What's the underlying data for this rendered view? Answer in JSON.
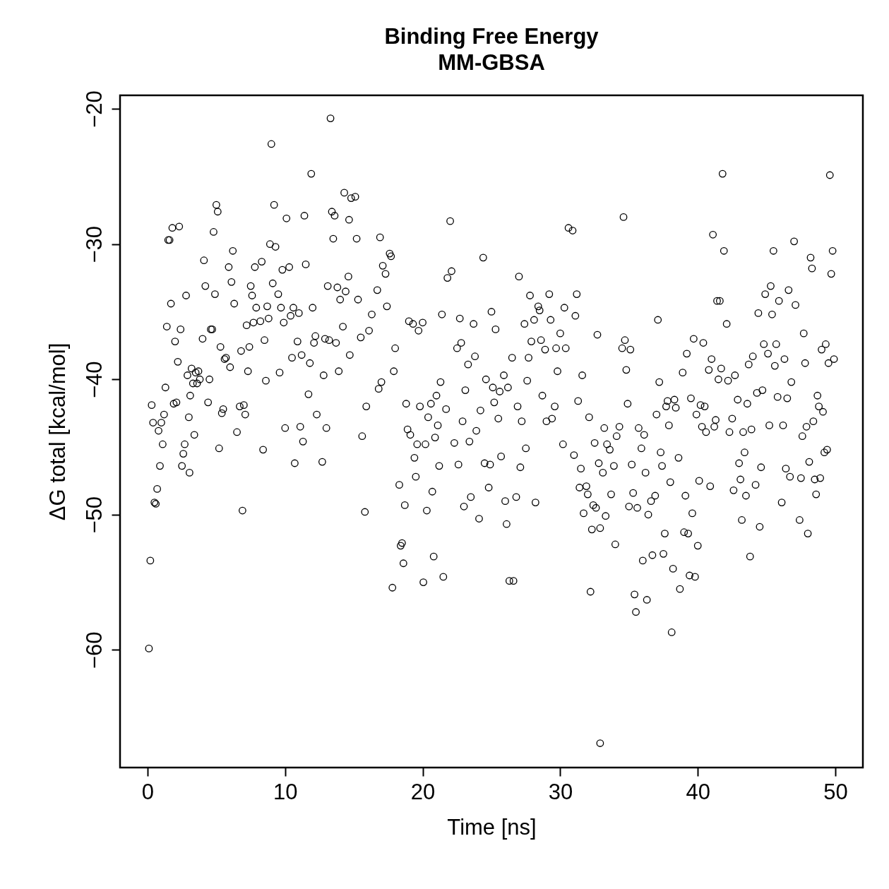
{
  "chart_data": {
    "type": "scatter",
    "title": "Binding Free Energy",
    "subtitle": "MM-GBSA",
    "xlabel": "Time [ns]",
    "ylabel": "ΔG total [kcal/mol]",
    "xlim": [
      -2,
      52
    ],
    "ylim": [
      -68.7,
      -19.0
    ],
    "xticks": [
      0,
      10,
      20,
      30,
      40,
      50
    ],
    "yticks": [
      -20,
      -30,
      -40,
      -50,
      -60
    ],
    "marker": "circle",
    "x": [
      0.1,
      0.2,
      0.3,
      0.4,
      0.5,
      0.6,
      0.7,
      0.8,
      0.9,
      1.0,
      1.1,
      1.2,
      1.3,
      1.4,
      1.5,
      1.6,
      1.7,
      1.8,
      1.9,
      2.0,
      2.1,
      2.2,
      2.3,
      2.4,
      2.5,
      2.6,
      2.7,
      2.8,
      2.9,
      3.0,
      3.05,
      3.1,
      3.2,
      3.3,
      3.4,
      3.5,
      3.6,
      3.7,
      3.8,
      4.0,
      4.1,
      4.2,
      4.4,
      4.5,
      4.6,
      4.7,
      4.8,
      4.9,
      5.0,
      5.1,
      5.2,
      5.3,
      5.4,
      5.5,
      5.6,
      5.7,
      5.9,
      6.0,
      6.1,
      6.2,
      6.3,
      6.5,
      6.7,
      6.8,
      6.9,
      7.0,
      7.1,
      7.2,
      7.3,
      7.4,
      7.5,
      7.6,
      7.7,
      7.8,
      7.9,
      8.2,
      8.3,
      8.4,
      8.5,
      8.6,
      8.7,
      8.8,
      8.9,
      9.0,
      9.1,
      9.2,
      9.3,
      9.5,
      9.6,
      9.7,
      9.8,
      9.9,
      10.0,
      10.1,
      10.3,
      10.4,
      10.5,
      10.6,
      10.7,
      10.9,
      11.0,
      11.1,
      11.2,
      11.3,
      11.4,
      11.5,
      11.7,
      11.8,
      11.9,
      12.0,
      12.1,
      12.2,
      12.3,
      12.7,
      12.8,
      12.9,
      13.0,
      13.1,
      13.2,
      13.3,
      13.4,
      13.5,
      13.6,
      13.7,
      13.8,
      13.9,
      14.0,
      14.2,
      14.3,
      14.4,
      14.6,
      14.65,
      14.7,
      14.8,
      15.1,
      15.2,
      15.3,
      15.5,
      15.6,
      15.8,
      15.9,
      16.1,
      16.3,
      16.7,
      16.8,
      16.9,
      17.0,
      17.1,
      17.3,
      17.4,
      17.6,
      17.7,
      17.8,
      17.9,
      18.0,
      18.3,
      18.4,
      18.5,
      18.6,
      18.7,
      18.8,
      18.9,
      19.0,
      19.1,
      19.3,
      19.4,
      19.5,
      19.6,
      19.7,
      19.8,
      20.0,
      20.05,
      20.2,
      20.3,
      20.4,
      20.6,
      20.7,
      20.8,
      20.9,
      21.0,
      21.1,
      21.2,
      21.3,
      21.4,
      21.5,
      21.7,
      21.8,
      22.0,
      22.1,
      22.3,
      22.5,
      22.6,
      22.7,
      22.8,
      22.9,
      23.0,
      23.1,
      23.3,
      23.4,
      23.5,
      23.7,
      23.8,
      23.9,
      24.1,
      24.2,
      24.4,
      24.5,
      24.6,
      24.8,
      24.9,
      25.0,
      25.1,
      25.2,
      25.3,
      25.5,
      25.6,
      25.7,
      25.9,
      26.0,
      26.1,
      26.2,
      26.3,
      26.5,
      26.6,
      26.8,
      26.9,
      27.0,
      27.1,
      27.2,
      27.4,
      27.5,
      27.6,
      27.7,
      27.8,
      27.9,
      28.1,
      28.2,
      28.4,
      28.5,
      28.6,
      28.7,
      28.9,
      29.0,
      29.2,
      29.3,
      29.4,
      29.6,
      29.7,
      29.8,
      30.0,
      30.2,
      30.3,
      30.4,
      30.6,
      30.9,
      31.0,
      31.1,
      31.2,
      31.3,
      31.4,
      31.5,
      31.6,
      31.7,
      31.9,
      32.0,
      32.1,
      32.2,
      32.3,
      32.4,
      32.5,
      32.6,
      32.7,
      32.8,
      32.9,
      32.9,
      33.1,
      33.2,
      33.3,
      33.4,
      33.6,
      33.7,
      33.9,
      34.0,
      34.1,
      34.3,
      34.5,
      34.6,
      34.7,
      34.8,
      34.9,
      35.0,
      35.1,
      35.2,
      35.3,
      35.4,
      35.5,
      35.6,
      35.7,
      35.9,
      36.0,
      36.1,
      36.2,
      36.3,
      36.4,
      36.6,
      36.7,
      36.9,
      37.0,
      37.1,
      37.2,
      37.3,
      37.4,
      37.5,
      37.6,
      37.7,
      37.8,
      37.9,
      38.0,
      38.1,
      38.2,
      38.3,
      38.4,
      38.6,
      38.7,
      38.9,
      39.0,
      39.1,
      39.2,
      39.3,
      39.4,
      39.5,
      39.6,
      39.7,
      39.8,
      39.9,
      40.0,
      40.1,
      40.2,
      40.3,
      40.4,
      40.5,
      40.6,
      40.8,
      40.9,
      41.0,
      41.1,
      41.2,
      41.3,
      41.4,
      41.5,
      41.6,
      41.7,
      41.8,
      41.9,
      42.1,
      42.2,
      42.3,
      42.5,
      42.6,
      42.7,
      42.9,
      43.0,
      43.1,
      43.2,
      43.3,
      43.4,
      43.5,
      43.6,
      43.7,
      43.8,
      43.9,
      44.0,
      44.2,
      44.3,
      44.4,
      44.5,
      44.6,
      44.7,
      44.8,
      44.9,
      45.1,
      45.2,
      45.3,
      45.4,
      45.5,
      45.6,
      45.7,
      45.8,
      45.9,
      46.1,
      46.2,
      46.3,
      46.4,
      46.5,
      46.6,
      46.7,
      46.8,
      47.0,
      47.1,
      47.4,
      47.5,
      47.6,
      47.7,
      47.8,
      47.9,
      48.0,
      48.1,
      48.2,
      48.3,
      48.4,
      48.5,
      48.6,
      48.7,
      48.8,
      48.9,
      49.0,
      49.1,
      49.2,
      49.3,
      49.4,
      49.5,
      49.6,
      49.7,
      49.8,
      49.9
    ],
    "series": [
      {
        "color": "#000000",
        "values": [
          -59.9,
          -53.4,
          -41.9,
          -43.2,
          -49.1,
          -49.2,
          -48.1,
          -43.8,
          -46.4,
          -43.2,
          -44.8,
          -42.6,
          -40.6,
          -36.1,
          -29.7,
          -29.7,
          -34.4,
          -28.8,
          -41.8,
          -37.2,
          -41.7,
          -38.7,
          -28.7,
          -36.3,
          -46.4,
          -45.5,
          -44.8,
          -33.8,
          -39.7,
          -42.8,
          -46.9,
          -41.2,
          -39.2,
          -40.3,
          -44.1,
          -39.5,
          -40.3,
          -39.4,
          -40.0,
          -37.0,
          -31.2,
          -33.1,
          -41.7,
          -40.0,
          -36.3,
          -36.3,
          -29.1,
          -33.7,
          -27.1,
          -27.6,
          -45.1,
          -37.6,
          -42.5,
          -42.2,
          -38.5,
          -38.4,
          -31.7,
          -39.1,
          -32.8,
          -30.5,
          -34.4,
          -43.9,
          -42.0,
          -37.9,
          -49.7,
          -41.9,
          -42.6,
          -36.0,
          -39.4,
          -37.6,
          -33.1,
          -33.8,
          -35.8,
          -31.7,
          -34.7,
          -35.7,
          -31.3,
          -45.2,
          -37.1,
          -40.1,
          -34.6,
          -35.5,
          -30.0,
          -22.6,
          -32.9,
          -27.1,
          -30.2,
          -33.7,
          -39.5,
          -34.7,
          -31.9,
          -35.8,
          -43.6,
          -28.1,
          -31.7,
          -35.3,
          -38.4,
          -34.7,
          -46.2,
          -37.2,
          -35.1,
          -43.5,
          -38.2,
          -44.6,
          -27.9,
          -31.5,
          -41.1,
          -38.8,
          -24.8,
          -34.7,
          -37.3,
          -36.8,
          -42.6,
          -46.1,
          -39.7,
          -37.0,
          -43.6,
          -33.1,
          -37.1,
          -20.7,
          -27.6,
          -29.6,
          -27.9,
          -37.3,
          -33.2,
          -39.4,
          -34.1,
          -36.1,
          -26.2,
          -33.5,
          -32.4,
          -28.2,
          -38.2,
          -26.6,
          -26.5,
          -29.6,
          -34.1,
          -36.9,
          -44.2,
          -49.8,
          -42.0,
          -36.4,
          -35.2,
          -33.4,
          -40.7,
          -29.5,
          -40.2,
          -31.6,
          -32.2,
          -34.6,
          -30.7,
          -30.9,
          -55.4,
          -39.4,
          -37.7,
          -47.8,
          -52.3,
          -52.1,
          -53.6,
          -49.3,
          -41.8,
          -43.7,
          -35.7,
          -44.1,
          -35.9,
          -45.8,
          -47.2,
          -44.8,
          -36.4,
          -42.0,
          -35.8,
          -55.0,
          -44.8,
          -49.7,
          -42.8,
          -41.8,
          -48.3,
          -53.1,
          -44.3,
          -41.2,
          -43.4,
          -46.4,
          -40.2,
          -35.2,
          -54.6,
          -42.2,
          -32.5,
          -28.3,
          -32.0,
          -44.7,
          -37.7,
          -46.3,
          -35.5,
          -37.3,
          -43.1,
          -49.4,
          -40.8,
          -38.9,
          -44.6,
          -48.7,
          -35.9,
          -38.3,
          -43.8,
          -50.3,
          -42.3,
          -31.0,
          -46.2,
          -40.0,
          -48.0,
          -46.3,
          -35.0,
          -40.6,
          -41.7,
          -36.3,
          -42.9,
          -40.9,
          -45.7,
          -39.7,
          -49.0,
          -50.7,
          -40.6,
          -54.9,
          -38.4,
          -54.9,
          -48.7,
          -42.0,
          -32.4,
          -46.5,
          -43.1,
          -35.9,
          -45.1,
          -40.1,
          -38.4,
          -33.8,
          -37.2,
          -35.6,
          -49.1,
          -34.6,
          -34.9,
          -37.1,
          -41.2,
          -37.8,
          -43.1,
          -33.7,
          -35.6,
          -42.9,
          -42.0,
          -37.7,
          -39.4,
          -36.6,
          -44.8,
          -34.7,
          -37.7,
          -28.8,
          -29.0,
          -45.6,
          -35.3,
          -33.7,
          -41.6,
          -48.0,
          -46.6,
          -39.7,
          -49.9,
          -47.9,
          -48.5,
          -42.8,
          -55.7,
          -51.1,
          -49.3,
          -44.7,
          -49.5,
          -36.7,
          -46.2,
          -51.0,
          -66.9,
          -46.9,
          -43.6,
          -50.1,
          -44.8,
          -45.2,
          -48.5,
          -46.4,
          -52.2,
          -44.2,
          -43.5,
          -37.7,
          -28.0,
          -37.1,
          -39.3,
          -41.8,
          -49.4,
          -37.8,
          -46.3,
          -48.4,
          -55.9,
          -57.2,
          -49.5,
          -43.6,
          -45.1,
          -53.4,
          -44.1,
          -46.9,
          -56.3,
          -50.0,
          -49.0,
          -53.0,
          -48.6,
          -42.6,
          -35.6,
          -40.2,
          -45.4,
          -46.4,
          -52.9,
          -51.4,
          -42.0,
          -41.6,
          -43.4,
          -47.6,
          -58.7,
          -54.0,
          -41.5,
          -42.1,
          -45.8,
          -55.5,
          -39.5,
          -51.3,
          -48.6,
          -38.1,
          -51.4,
          -54.5,
          -41.4,
          -49.9,
          -37.0,
          -54.6,
          -42.6,
          -52.3,
          -47.5,
          -41.9,
          -43.5,
          -37.3,
          -42.0,
          -43.9,
          -39.3,
          -47.9,
          -38.5,
          -29.3,
          -43.5,
          -43.0,
          -34.2,
          -40.0,
          -34.2,
          -39.2,
          -24.8,
          -30.5,
          -35.9,
          -40.1,
          -43.9,
          -42.9,
          -48.2,
          -39.7,
          -41.5,
          -46.2,
          -47.4,
          -50.4,
          -43.9,
          -45.4,
          -48.6,
          -41.8,
          -38.9,
          -53.1,
          -43.7,
          -38.3,
          -47.8,
          -41.0,
          -35.1,
          -50.9,
          -46.5,
          -40.8,
          -37.4,
          -33.7,
          -38.1,
          -43.4,
          -33.1,
          -35.2,
          -30.5,
          -39.0,
          -37.4,
          -41.3,
          -34.2,
          -49.1,
          -43.4,
          -38.5,
          -46.6,
          -41.4,
          -33.4,
          -47.2,
          -40.2,
          -29.8,
          -34.5,
          -50.4,
          -47.3,
          -44.2,
          -36.6,
          -38.8,
          -43.5,
          -51.4,
          -46.1,
          -31.0,
          -31.8,
          -43.1,
          -47.4,
          -48.5,
          -41.2,
          -42.0,
          -47.3,
          -37.8,
          -42.4,
          -45.4,
          -37.4,
          -45.2,
          -38.8,
          -24.9,
          -32.2,
          -30.5,
          -38.5
        ]
      }
    ]
  }
}
